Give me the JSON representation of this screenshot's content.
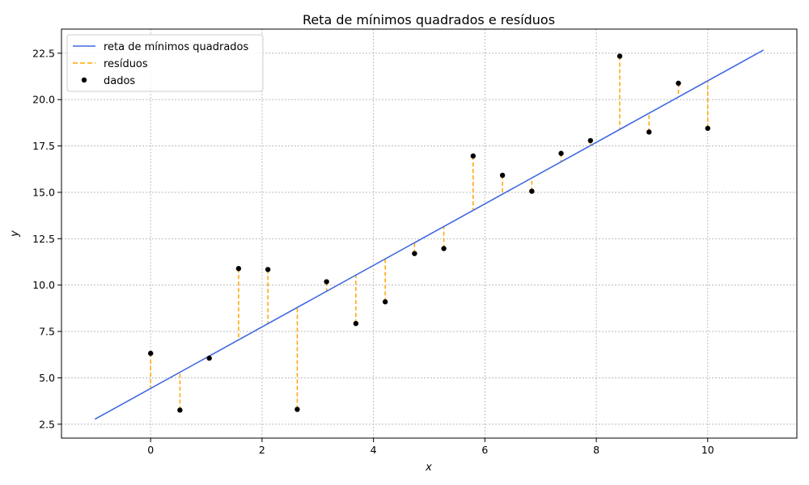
{
  "chart_data": {
    "type": "scatter",
    "title": "Reta de mínimos quadrados e resíduos",
    "xlabel": "x",
    "ylabel": "y",
    "xlim": [
      -1.6,
      11.6
    ],
    "ylim": [
      1.75,
      23.8
    ],
    "xticks": [
      0,
      2,
      4,
      6,
      8,
      10
    ],
    "yticks": [
      2.5,
      5.0,
      7.5,
      10.0,
      12.5,
      15.0,
      17.5,
      20.0,
      22.5
    ],
    "xtick_labels": [
      "0",
      "2",
      "4",
      "6",
      "8",
      "10"
    ],
    "ytick_labels": [
      "2.5",
      "5.0",
      "7.5",
      "10.0",
      "12.5",
      "15.0",
      "17.5",
      "20.0",
      "22.5"
    ],
    "grid": true,
    "legend_position": "top-left",
    "legend": [
      {
        "label": "reta de mínimos quadrados",
        "kind": "line",
        "color": "#4169e1"
      },
      {
        "label": "resíduos",
        "kind": "dashed",
        "color": "#ffa500"
      },
      {
        "label": "dados",
        "kind": "marker",
        "color": "#000000"
      }
    ],
    "fit_line": {
      "x": [
        -1.0,
        11.0
      ],
      "y": [
        2.77,
        22.67
      ]
    },
    "points": {
      "x": [
        0.0,
        0.526,
        1.053,
        1.579,
        2.105,
        2.632,
        3.158,
        3.684,
        4.211,
        4.737,
        5.263,
        5.789,
        6.316,
        6.842,
        7.368,
        7.895,
        8.421,
        8.947,
        9.474,
        10.0
      ],
      "y": [
        6.32,
        3.26,
        6.06,
        10.89,
        10.84,
        3.3,
        10.18,
        7.93,
        9.1,
        11.7,
        11.97,
        16.96,
        15.92,
        15.06,
        17.1,
        17.79,
        22.34,
        18.25,
        20.88,
        18.45
      ]
    },
    "colors": {
      "line": "#4169e1",
      "residual": "#ffa500",
      "point": "#000000",
      "grid": "#b0b0b0"
    }
  }
}
